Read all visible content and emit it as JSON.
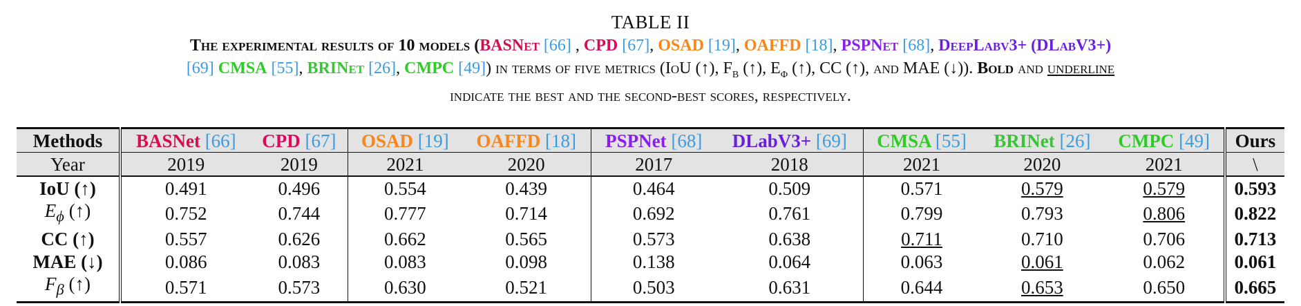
{
  "caption": {
    "title": "TABLE II",
    "line1_a": "The experimental results of 10 models (",
    "line1_models": [
      {
        "name": "BASNet",
        "ref": "[66]",
        "sep": " , "
      },
      {
        "name": "CPD",
        "ref": "[67]",
        "sep": ", "
      },
      {
        "name": "OSAD",
        "ref": "[19]",
        "sep": ", "
      },
      {
        "name": "OAFFD",
        "ref": "[18]",
        "sep": ", "
      },
      {
        "name": "PSPNet",
        "ref": "[68]",
        "sep": ", "
      },
      {
        "name": "DeepLabv3+ (DLabV3+)",
        "ref": "",
        "sep": ""
      }
    ],
    "line2_refA": "[69]",
    "line2_models": [
      {
        "name": "CMSA",
        "ref": "[55]",
        "sep": ", "
      },
      {
        "name": "BRINet",
        "ref": "[26]",
        "sep": ", "
      },
      {
        "name": "CMPC",
        "ref": "[49]",
        "sep": ""
      }
    ],
    "line2_b": ") in terms of five metrics (IoU (↑), F",
    "line2_fsub": "β",
    "line2_c": " (↑), E",
    "line2_esub": "ϕ",
    "line2_d": " (↑), CC (↑), and MAE (↓)). ",
    "line2_bold": "Bold",
    "line2_e": " and ",
    "line2_under": "underline",
    "line3": "indicate the best and the second-best scores, respectively."
  },
  "table": {
    "corner_label": "Methods",
    "year_label": "Year",
    "methods": [
      {
        "name": "BASNet",
        "ref": "[66]",
        "year": "2019"
      },
      {
        "name": "CPD",
        "ref": "[67]",
        "year": "2019"
      },
      {
        "name": "OSAD",
        "ref": "[19]",
        "year": "2021"
      },
      {
        "name": "OAFFD",
        "ref": "[18]",
        "year": "2020"
      },
      {
        "name": "PSPNet",
        "ref": "[68]",
        "year": "2017"
      },
      {
        "name": "DLabV3+",
        "ref": "[69]",
        "year": "2018"
      },
      {
        "name": "CMSA",
        "ref": "[55]",
        "year": "2021"
      },
      {
        "name": "BRINet",
        "ref": "[26]",
        "year": "2020"
      },
      {
        "name": "CMPC",
        "ref": "[49]",
        "year": "2021"
      },
      {
        "name": "Ours",
        "ref": "",
        "year": "\\"
      }
    ],
    "rows": [
      {
        "metric": "IoU (↑)",
        "values": [
          "0.491",
          "0.496",
          "0.554",
          "0.439",
          "0.464",
          "0.509",
          "0.571",
          "0.579",
          "0.579",
          "0.593"
        ]
      },
      {
        "metric": "E",
        "sub": "ϕ",
        "suffix": " (↑)",
        "values": [
          "0.752",
          "0.744",
          "0.777",
          "0.714",
          "0.692",
          "0.761",
          "0.799",
          "0.793",
          "0.806",
          "0.822"
        ]
      },
      {
        "metric": "CC (↑)",
        "values": [
          "0.557",
          "0.626",
          "0.662",
          "0.565",
          "0.573",
          "0.638",
          "0.711",
          "0.710",
          "0.706",
          "0.713"
        ]
      },
      {
        "metric": "MAE (↓)",
        "values": [
          "0.086",
          "0.083",
          "0.083",
          "0.098",
          "0.138",
          "0.064",
          "0.063",
          "0.061",
          "0.062",
          "0.061"
        ]
      },
      {
        "metric": "F",
        "sub": "β",
        "suffix": " (↑)",
        "values": [
          "0.571",
          "0.573",
          "0.630",
          "0.521",
          "0.503",
          "0.631",
          "0.644",
          "0.653",
          "0.650",
          "0.665"
        ]
      }
    ],
    "underlined": [
      [
        0,
        7
      ],
      [
        0,
        8
      ],
      [
        1,
        8
      ],
      [
        2,
        6
      ],
      [
        3,
        7
      ],
      [
        4,
        7
      ]
    ]
  },
  "colors": {
    "BASNet": "#d2104e",
    "CPD": "#dd0a5c",
    "OSAD": "#f7861c",
    "OAFFD": "#f7861c",
    "PSPNet": "#8a1ef0",
    "DLabV3+": "#6a1fe0",
    "CMSA": "#2fcc28",
    "BRINet": "#3ec23a",
    "CMPC": "#2fcc28",
    "ref": "#3b9be0",
    "header_bg": "#e3e3e3"
  }
}
